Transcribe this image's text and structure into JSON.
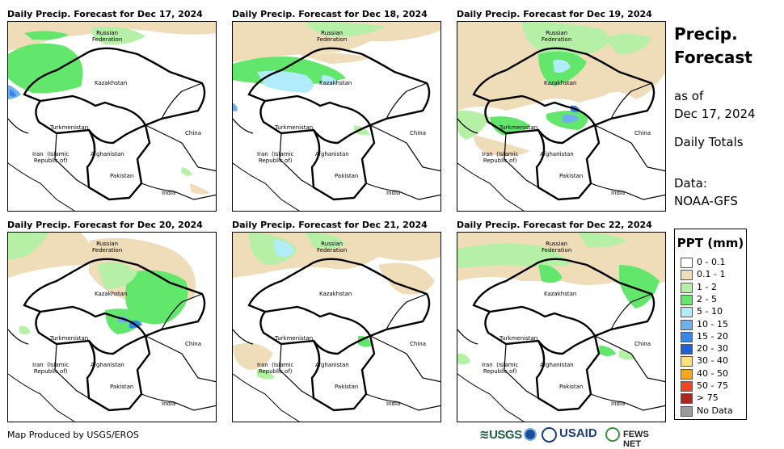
{
  "panels": [
    {
      "title": "Daily Precip. Forecast for Dec 17, 2024"
    },
    {
      "title": "Daily Precip. Forecast for Dec 18, 2024"
    },
    {
      "title": "Daily Precip. Forecast for Dec 19, 2024"
    },
    {
      "title": "Daily Precip. Forecast for Dec 20, 2024"
    },
    {
      "title": "Daily Precip. Forecast for Dec 21, 2024"
    },
    {
      "title": "Daily Precip. Forecast for Dec 22, 2024"
    }
  ],
  "map_labels": {
    "russia": "Russian\nFederation",
    "kazakhstan": "Kazakhstan",
    "turkmenistan": "Turkmenistan",
    "china": "China",
    "iran": "Iran  (Islamic\nRepublic of)",
    "afghanistan": "Afghanistan",
    "pakistan": "Pakistan",
    "india": "India"
  },
  "sidebar": {
    "title_line1": "Precip.",
    "title_line2": "Forecast",
    "asof_line1": "as of",
    "asof_line2": "Dec 17, 2024",
    "totals": "Daily Totals",
    "data_line1": "Data:",
    "data_line2": "NOAA-GFS"
  },
  "legend": {
    "title": "PPT (mm)",
    "items": [
      {
        "label": "0 - 0.1",
        "color": "#ffffff"
      },
      {
        "label": "0.1 - 1",
        "color": "#efdcb9"
      },
      {
        "label": "1 - 2",
        "color": "#b5f0a6"
      },
      {
        "label": "2 - 5",
        "color": "#63e66c"
      },
      {
        "label": "5 - 10",
        "color": "#b0ecf9"
      },
      {
        "label": "10 - 15",
        "color": "#6fb1ec"
      },
      {
        "label": "15 - 20",
        "color": "#3685e8"
      },
      {
        "label": "20 - 30",
        "color": "#1d5fdc"
      },
      {
        "label": "30 - 40",
        "color": "#fce07a"
      },
      {
        "label": "40 - 50",
        "color": "#f7a519"
      },
      {
        "label": "50 - 75",
        "color": "#f2461f"
      },
      {
        "label": "> 75",
        "color": "#b1251f"
      },
      {
        "label": "No Data",
        "color": "#9b9b9b"
      }
    ]
  },
  "footer": {
    "credit": "Map Produced by USGS/EROS",
    "logo_usgs": "≋USGS",
    "logo_usaid": "USAID",
    "logo_fews": "FEWS NET"
  }
}
